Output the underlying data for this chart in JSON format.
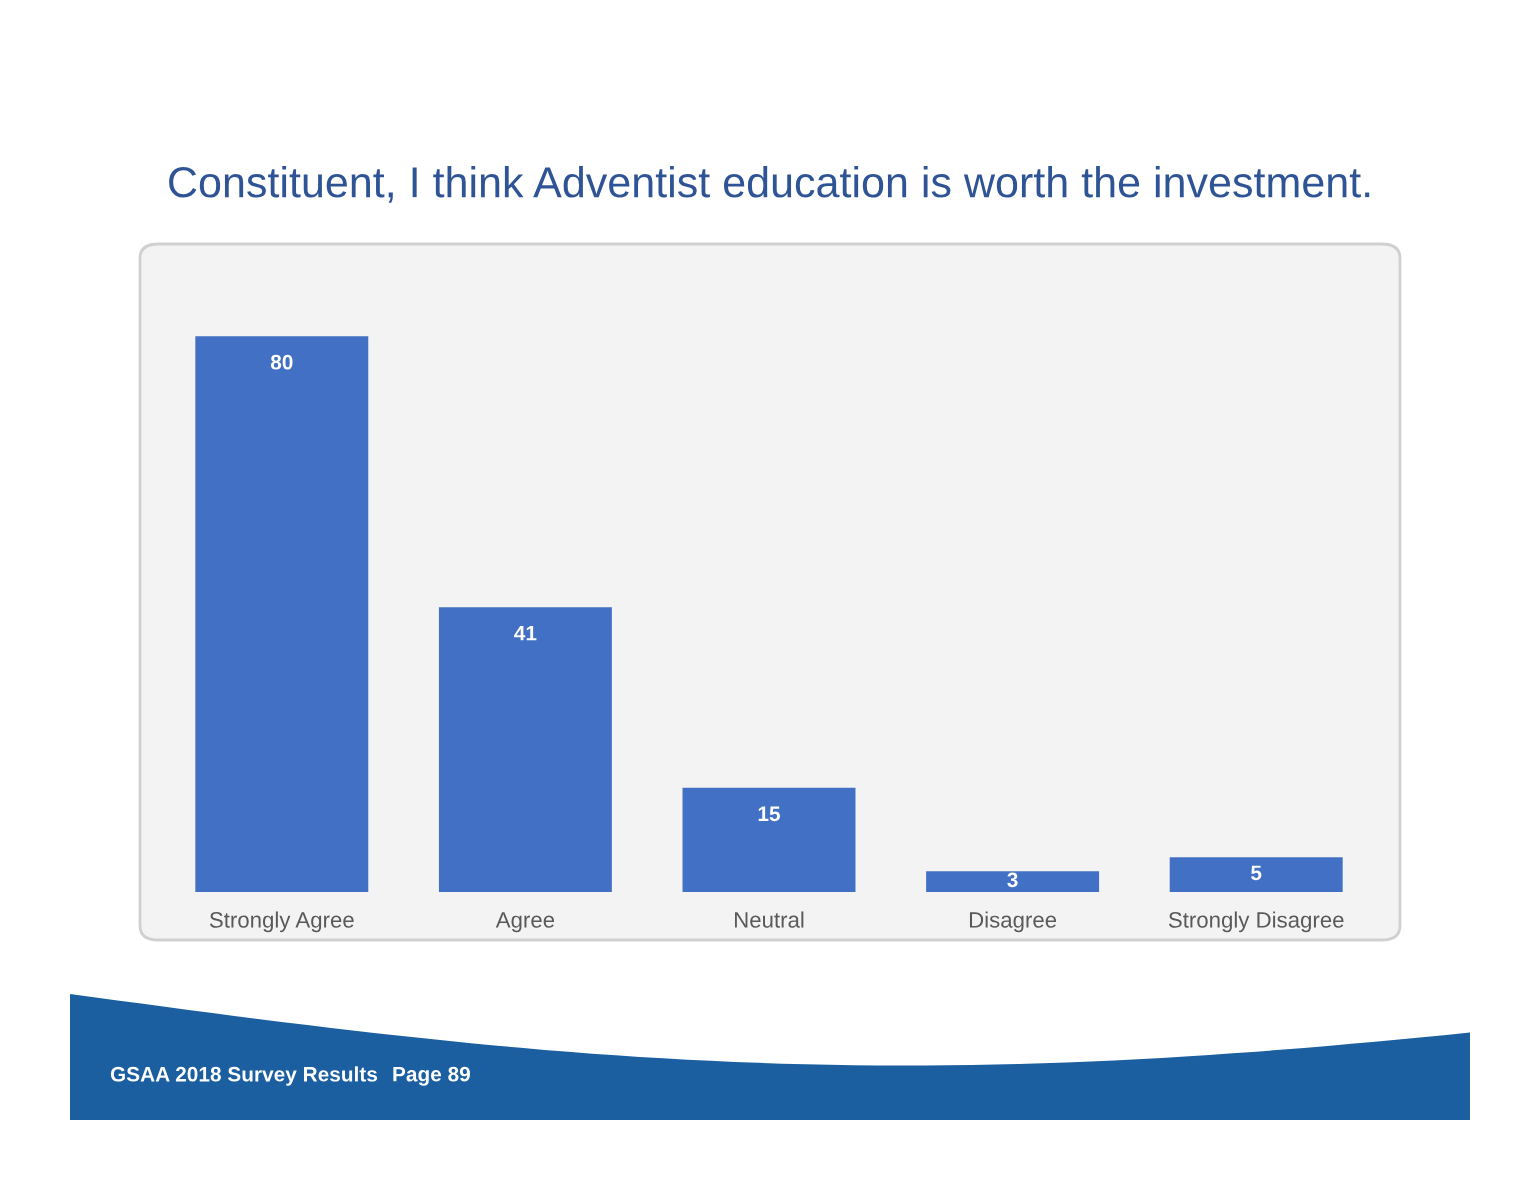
{
  "chart_data": {
    "type": "bar",
    "title": "Constituent, I think Adventist education is worth the investment.",
    "categories": [
      "Strongly Agree",
      "Agree",
      "Neutral",
      "Disagree",
      "Strongly Disagree"
    ],
    "values": [
      80,
      41,
      15,
      3,
      5
    ],
    "color": "#4270c4",
    "data_labels": true,
    "tick_labels": "x",
    "annotations": [
      "GSAA 2018 Survey Results",
      "Page 89"
    ]
  }
}
